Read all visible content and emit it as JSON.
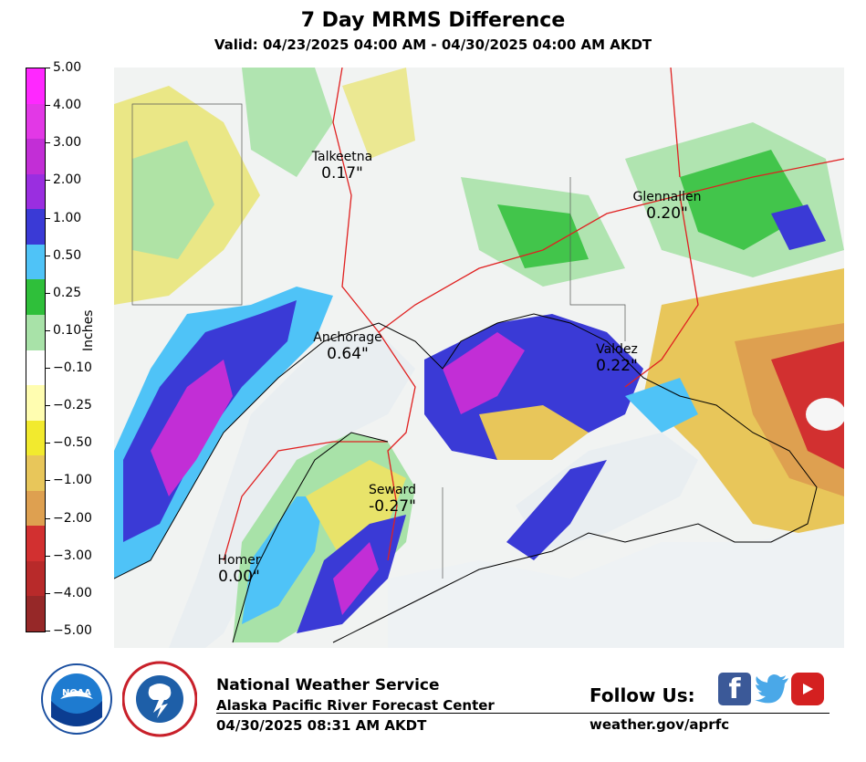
{
  "header": {
    "title": "7 Day MRMS Difference",
    "subtitle": "Valid: 04/23/2025 04:00 AM - 04/30/2025 04:00 AM AKDT"
  },
  "colorbar": {
    "title": "Inches",
    "ticks": [
      "5.00",
      "4.00",
      "3.00",
      "2.00",
      "1.00",
      "0.50",
      "0.25",
      "0.10",
      "−0.10",
      "−0.25",
      "−0.50",
      "−1.00",
      "−2.00",
      "−3.00",
      "−4.00",
      "−5.00"
    ],
    "colors": [
      "#ff28ff",
      "#e238e6",
      "#c22ed6",
      "#9a2ee0",
      "#3a3ad6",
      "#4fc3f7",
      "#2fbf3a",
      "#a8e2a8",
      "#ffffff",
      "#fffdb0",
      "#f2ea2e",
      "#e8c65a",
      "#dea050",
      "#d23030",
      "#b82a2a",
      "#962828"
    ]
  },
  "map": {
    "places": [
      {
        "name": "Talkeetna",
        "value": "0.17\""
      },
      {
        "name": "Glennallen",
        "value": "0.20\""
      },
      {
        "name": "Anchorage",
        "value": "0.64\""
      },
      {
        "name": "Valdez",
        "value": "0.22\""
      },
      {
        "name": "Seward",
        "value": "-0.27\""
      },
      {
        "name": "Homer",
        "value": "0.00\""
      }
    ]
  },
  "footer": {
    "agency": "National Weather Service",
    "office": "Alaska Pacific River Forecast Center",
    "timestamp": "04/30/2025 08:31 AM AKDT",
    "follow_label": "Follow Us:",
    "website": "weather.gov/aprfc",
    "noaa_logo_text": "NOAA",
    "nws_logo_text": "NATIONAL WEATHER SERVICE"
  },
  "icons": [
    "noaa-logo-icon",
    "nws-logo-icon",
    "facebook-icon",
    "twitter-icon",
    "youtube-icon"
  ]
}
